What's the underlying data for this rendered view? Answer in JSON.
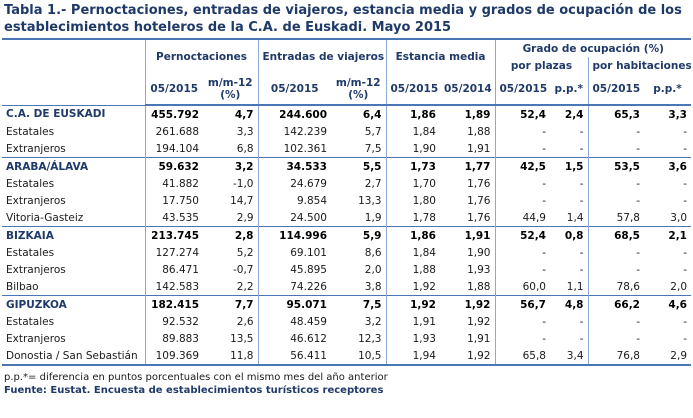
{
  "title": "Tabla 1.- Pernoctaciones, entradas de viajeros, estancia media y grados de ocupación de los establecimientos hoteleros de la C.A. de Euskadi. Mayo 2015",
  "header": {
    "groups": [
      "Pernoctaciones",
      "Entradas de viajeros",
      "Estancia media",
      "Grado de ocupación (%)"
    ],
    "subgroups": [
      "por plazas",
      "por habitaciones"
    ],
    "columns": [
      "05/2015",
      "m/m-12 (%)",
      "05/2015",
      "m/m-12 (%)",
      "05/2015",
      "05/2014",
      "05/2015",
      "p.p.*",
      "05/2015",
      "p.p.*"
    ]
  },
  "rows": [
    {
      "label": "C.A. DE EUSKADI",
      "bold": true,
      "values": [
        "455.792",
        "4,7",
        "244.600",
        "6,4",
        "1,86",
        "1,89",
        "52,4",
        "2,4",
        "65,3",
        "3,3"
      ]
    },
    {
      "label": "Estatales",
      "values": [
        "261.688",
        "3,3",
        "142.239",
        "5,7",
        "1,84",
        "1,88",
        "-",
        "-",
        "-",
        "-"
      ]
    },
    {
      "label": "Extranjeros",
      "values": [
        "194.104",
        "6,8",
        "102.361",
        "7,5",
        "1,90",
        "1,91",
        "-",
        "-",
        "-",
        "-"
      ]
    },
    {
      "label": "ARABA/ÁLAVA",
      "bold": true,
      "values": [
        "59.632",
        "3,2",
        "34.533",
        "5,5",
        "1,73",
        "1,77",
        "42,5",
        "1,5",
        "53,5",
        "3,6"
      ]
    },
    {
      "label": "Estatales",
      "values": [
        "41.882",
        "-1,0",
        "24.679",
        "2,7",
        "1,70",
        "1,76",
        "-",
        "-",
        "-",
        "-"
      ]
    },
    {
      "label": "Extranjeros",
      "values": [
        "17.750",
        "14,7",
        "9.854",
        "13,3",
        "1,80",
        "1,76",
        "-",
        "-",
        "-",
        "-"
      ]
    },
    {
      "label": "Vitoria-Gasteiz",
      "values": [
        "43.535",
        "2,9",
        "24.500",
        "1,9",
        "1,78",
        "1,76",
        "44,9",
        "1,4",
        "57,8",
        "3,0"
      ]
    },
    {
      "label": "BIZKAIA",
      "bold": true,
      "values": [
        "213.745",
        "2,8",
        "114.996",
        "5,9",
        "1,86",
        "1,91",
        "52,4",
        "0,8",
        "68,5",
        "2,1"
      ]
    },
    {
      "label": "Estatales",
      "values": [
        "127.274",
        "5,2",
        "69.101",
        "8,6",
        "1,84",
        "1,90",
        "-",
        "-",
        "-",
        "-"
      ]
    },
    {
      "label": "Extranjeros",
      "values": [
        "86.471",
        "-0,7",
        "45.895",
        "2,0",
        "1,88",
        "1,93",
        "-",
        "-",
        "-",
        "-"
      ]
    },
    {
      "label": "Bilbao",
      "values": [
        "142.583",
        "2,2",
        "74.226",
        "3,8",
        "1,92",
        "1,88",
        "60,0",
        "1,1",
        "78,6",
        "2,0"
      ]
    },
    {
      "label": "GIPUZKOA",
      "bold": true,
      "values": [
        "182.415",
        "7,7",
        "95.071",
        "7,5",
        "1,92",
        "1,92",
        "56,7",
        "4,8",
        "66,2",
        "4,6"
      ]
    },
    {
      "label": "Estatales",
      "values": [
        "92.532",
        "2,6",
        "48.459",
        "3,2",
        "1,91",
        "1,92",
        "-",
        "-",
        "-",
        "-"
      ]
    },
    {
      "label": "Extranjeros",
      "values": [
        "89.883",
        "13,5",
        "46.612",
        "12,3",
        "1,93",
        "1,91",
        "-",
        "-",
        "-",
        "-"
      ]
    },
    {
      "label": "Donostia / San Sebastián",
      "values": [
        "109.369",
        "11,8",
        "56.411",
        "10,5",
        "1,94",
        "1,92",
        "65,8",
        "3,4",
        "76,8",
        "2,9"
      ]
    }
  ],
  "notes": [
    "p.p.*= diferencia en puntos porcentuales con el mismo mes del año anterior",
    "Fuente: Eustat. Encuesta de establecimientos turísticos receptores"
  ]
}
